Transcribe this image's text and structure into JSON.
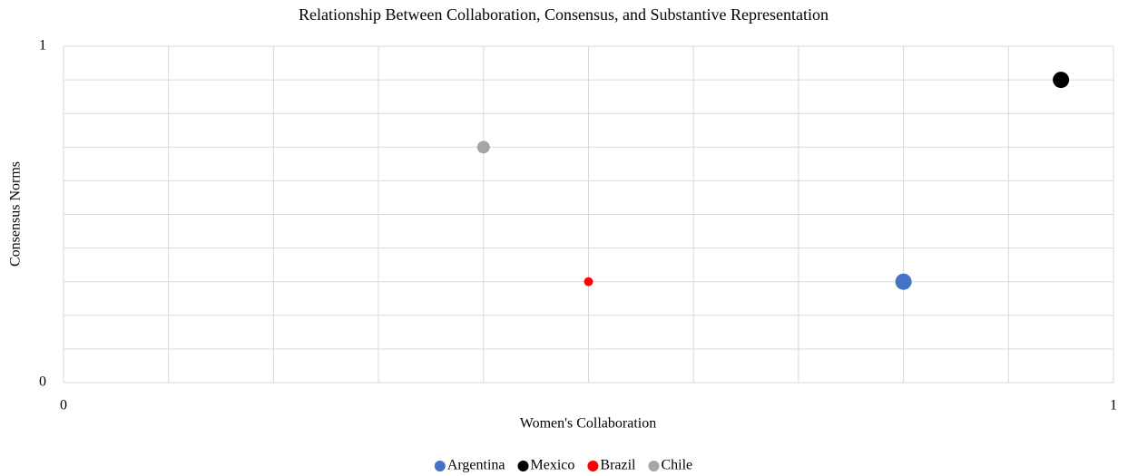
{
  "chart_data": {
    "type": "bubble",
    "title": "Relationship Between Collaboration, Consensus, and Substantive Representation",
    "x_label": "Women's Collaboration",
    "y_label": "Consensus Norms",
    "xlim": [
      0,
      1
    ],
    "ylim": [
      0,
      1
    ],
    "xticks": [
      0,
      1
    ],
    "yticks": [
      0,
      1
    ],
    "xgrid": [
      0,
      0.1,
      0.2,
      0.3,
      0.4,
      0.5,
      0.6,
      0.7,
      0.8,
      0.9,
      1
    ],
    "ygrid": [
      0,
      0.1,
      0.2,
      0.3,
      0.4,
      0.5,
      0.6,
      0.7,
      0.8,
      0.9,
      1
    ],
    "grid": true,
    "legend": "bottom",
    "series": [
      {
        "name": "Argentina",
        "color": "#4472c4",
        "x": [
          0.8
        ],
        "values": [
          0.3
        ],
        "sizes": [
          1
        ]
      },
      {
        "name": "Mexico",
        "color": "#000000",
        "x": [
          0.95
        ],
        "values": [
          0.9
        ],
        "sizes": [
          1
        ]
      },
      {
        "name": "Brazil",
        "color": "#ff0000",
        "x": [
          0.5
        ],
        "values": [
          0.3
        ],
        "sizes": [
          0.3
        ]
      },
      {
        "name": "Chile",
        "color": "#a5a5a5",
        "x": [
          0.4
        ],
        "values": [
          0.7
        ],
        "sizes": [
          0.6
        ]
      }
    ]
  }
}
